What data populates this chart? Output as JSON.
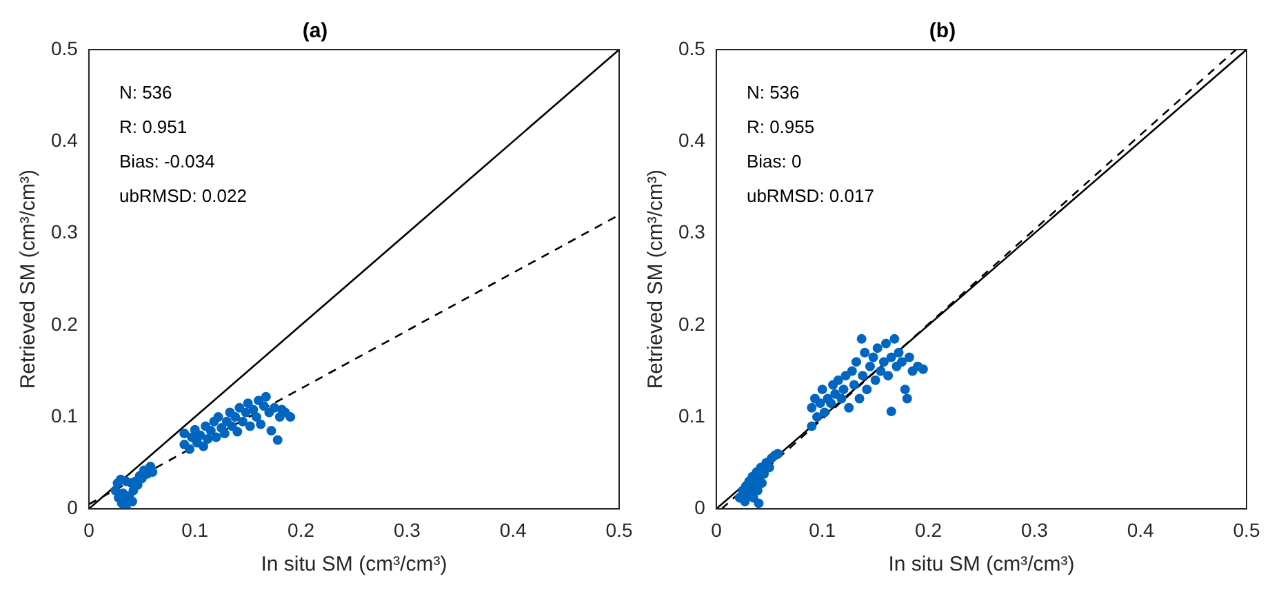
{
  "chart_data": [
    {
      "type": "scatter",
      "title": "(a)",
      "xlabel": "In situ SM (cm³/cm³)",
      "ylabel": "Retrieved SM (cm³/cm³)",
      "annotations": [
        "N: 536",
        "R: 0.951",
        "Bias: -0.034",
        "ubRMSD: 0.022"
      ],
      "xlim": [
        0,
        0.5
      ],
      "ylim": [
        0,
        0.5
      ],
      "xticks": [
        0,
        0.1,
        0.2,
        0.3,
        0.4,
        0.5
      ],
      "yticks": [
        0,
        0.1,
        0.2,
        0.3,
        0.4,
        0.5
      ],
      "grid": false,
      "legend": false,
      "series": [
        {
          "type": "scatter",
          "color": "#0066c0",
          "marker": "circle",
          "x": [
            0.025,
            0.027,
            0.028,
            0.03,
            0.031,
            0.032,
            0.034,
            0.035,
            0.035,
            0.038,
            0.04,
            0.041,
            0.042,
            0.044,
            0.046,
            0.048,
            0.05,
            0.052,
            0.055,
            0.058,
            0.06,
            0.09,
            0.09,
            0.095,
            0.097,
            0.1,
            0.102,
            0.105,
            0.108,
            0.11,
            0.112,
            0.115,
            0.118,
            0.12,
            0.122,
            0.125,
            0.128,
            0.13,
            0.133,
            0.135,
            0.138,
            0.14,
            0.142,
            0.145,
            0.148,
            0.15,
            0.152,
            0.155,
            0.158,
            0.16,
            0.162,
            0.165,
            0.167,
            0.17,
            0.172,
            0.175,
            0.178,
            0.18,
            0.182,
            0.185,
            0.19
          ],
          "values": [
            0.02,
            0.028,
            0.012,
            0.032,
            0.006,
            0.017,
            0.01,
            0.03,
            0.002,
            0.014,
            0.028,
            0.008,
            0.02,
            0.03,
            0.026,
            0.036,
            0.033,
            0.042,
            0.038,
            0.046,
            0.04,
            0.07,
            0.082,
            0.065,
            0.078,
            0.086,
            0.072,
            0.08,
            0.068,
            0.09,
            0.076,
            0.085,
            0.095,
            0.078,
            0.1,
            0.088,
            0.082,
            0.095,
            0.105,
            0.09,
            0.1,
            0.084,
            0.11,
            0.095,
            0.105,
            0.115,
            0.09,
            0.108,
            0.1,
            0.118,
            0.092,
            0.112,
            0.122,
            0.105,
            0.085,
            0.11,
            0.075,
            0.1,
            0.108,
            0.105,
            0.1
          ]
        },
        {
          "type": "line",
          "color": "#000000",
          "line_style": "solid",
          "marker": "none",
          "x": [
            0,
            0.5
          ],
          "values": [
            0,
            0.5
          ]
        },
        {
          "type": "line",
          "color": "#000000",
          "line_style": "dashed",
          "marker": "none",
          "x": [
            0,
            0.5
          ],
          "values": [
            0.005,
            0.32
          ]
        }
      ]
    },
    {
      "type": "scatter",
      "title": "(b)",
      "xlabel": "In situ SM (cm³/cm³)",
      "ylabel": "Retrieved SM (cm³/cm³)",
      "annotations": [
        "N: 536",
        "R: 0.955",
        "Bias: 0",
        "ubRMSD: 0.017"
      ],
      "xlim": [
        0,
        0.5
      ],
      "ylim": [
        0,
        0.5
      ],
      "xticks": [
        0,
        0.1,
        0.2,
        0.3,
        0.4,
        0.5
      ],
      "yticks": [
        0,
        0.1,
        0.2,
        0.3,
        0.4,
        0.5
      ],
      "grid": false,
      "legend": false,
      "series": [
        {
          "type": "scatter",
          "color": "#0066c0",
          "marker": "circle",
          "x": [
            0.022,
            0.025,
            0.027,
            0.028,
            0.03,
            0.031,
            0.033,
            0.034,
            0.035,
            0.036,
            0.038,
            0.039,
            0.04,
            0.042,
            0.043,
            0.045,
            0.047,
            0.05,
            0.052,
            0.055,
            0.058,
            0.04,
            0.09,
            0.09,
            0.093,
            0.095,
            0.098,
            0.1,
            0.102,
            0.105,
            0.108,
            0.11,
            0.112,
            0.115,
            0.118,
            0.12,
            0.122,
            0.125,
            0.128,
            0.13,
            0.132,
            0.135,
            0.137,
            0.138,
            0.14,
            0.142,
            0.145,
            0.148,
            0.15,
            0.152,
            0.155,
            0.158,
            0.16,
            0.162,
            0.165,
            0.165,
            0.168,
            0.17,
            0.172,
            0.175,
            0.178,
            0.18,
            0.182,
            0.185,
            0.19,
            0.195
          ],
          "values": [
            0.012,
            0.02,
            0.008,
            0.025,
            0.015,
            0.03,
            0.02,
            0.035,
            0.012,
            0.027,
            0.04,
            0.02,
            0.032,
            0.045,
            0.028,
            0.038,
            0.05,
            0.045,
            0.055,
            0.058,
            0.06,
            0.006,
            0.09,
            0.11,
            0.12,
            0.1,
            0.115,
            0.13,
            0.105,
            0.12,
            0.115,
            0.135,
            0.125,
            0.14,
            0.12,
            0.13,
            0.145,
            0.11,
            0.15,
            0.135,
            0.16,
            0.12,
            0.185,
            0.145,
            0.17,
            0.13,
            0.155,
            0.165,
            0.14,
            0.175,
            0.15,
            0.16,
            0.18,
            0.145,
            0.106,
            0.165,
            0.185,
            0.155,
            0.17,
            0.16,
            0.13,
            0.12,
            0.165,
            0.15,
            0.155,
            0.152
          ]
        },
        {
          "type": "line",
          "color": "#000000",
          "line_style": "solid",
          "marker": "none",
          "x": [
            0,
            0.5
          ],
          "values": [
            0,
            0.5
          ]
        },
        {
          "type": "line",
          "color": "#000000",
          "line_style": "dashed",
          "marker": "none",
          "x": [
            0.005,
            0.49
          ],
          "values": [
            0,
            0.5
          ]
        }
      ]
    }
  ]
}
